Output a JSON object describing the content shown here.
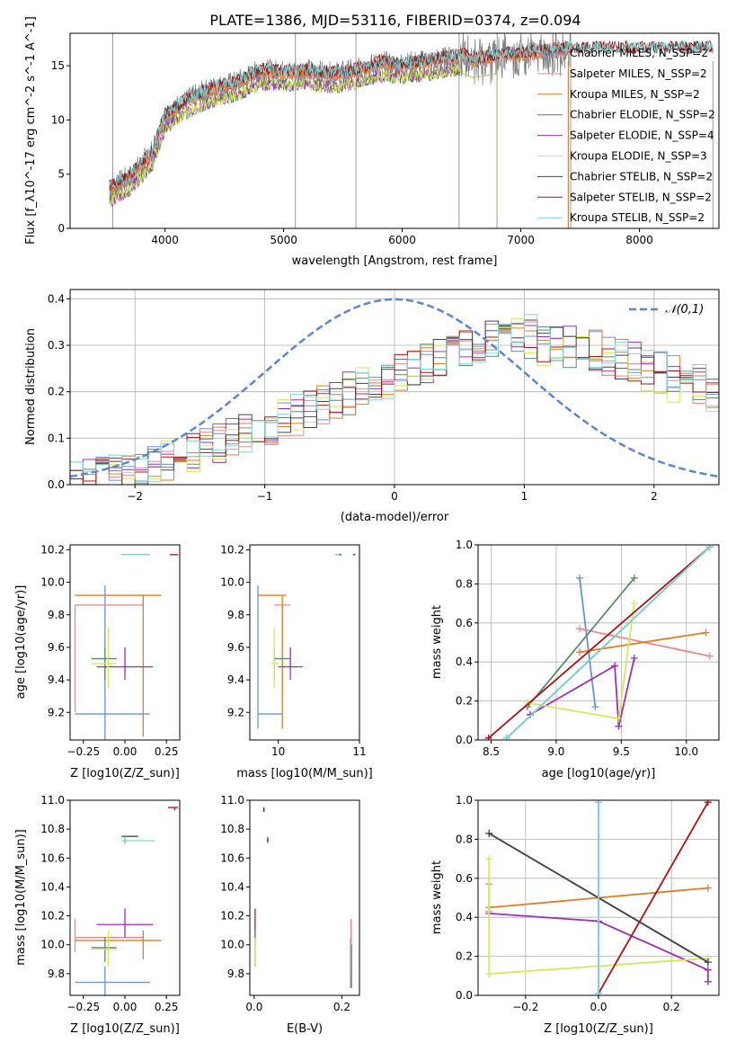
{
  "title": "PLATE=1386, MJD=53116, FIBERID=0374, z=0.094",
  "legend_fit": [
    "Chabrier MILES, N_SSP=2",
    "Salpeter MILES, N_SSP=2",
    "Kroupa MILES, N_SSP=2",
    "Chabrier ELODIE, N_SSP=2",
    "Salpeter ELODIE, N_SSP=4",
    "Kroupa ELODIE, N_SSP=3",
    "Chabrier STELIB, N_SSP=2",
    "Salpeter STELIB, N_SSP=2",
    "Kroupa STELIB, N_SSP=2"
  ],
  "colors": {
    "data": "#808080",
    "fits": [
      "#6a8fdb",
      "#e98a8a",
      "#e07d22",
      "#4c8a4c",
      "#9d2fb5",
      "#d4e85a",
      "#444444",
      "#b01010",
      "#7fd6d6"
    ],
    "series9": [
      "#6a8fdb",
      "#e98a8a",
      "#e07d22",
      "#5a8a6a",
      "#9d2fb5",
      "#d4e85a",
      "#444444",
      "#b01010",
      "#7fd6d6"
    ]
  },
  "chart_data": [
    {
      "type": "line",
      "id": "spectrum",
      "xlabel": "wavelength [Angstrom, rest frame]",
      "ylabel": "Flux [f_λ10^-17 erg cm^-2 s^-1 A^-1]",
      "xlim": [
        3200,
        8670
      ],
      "ylim": [
        0,
        18
      ],
      "xticks": [
        4000,
        5000,
        6000,
        7000,
        8000
      ],
      "yticks": [
        0,
        5,
        10,
        15
      ],
      "continuum_anchors": {
        "x": [
          3530,
          3700,
          3900,
          4000,
          4200,
          4400,
          4600,
          4800,
          5000,
          5200,
          5400,
          5600,
          5800,
          6000,
          6300,
          6500,
          6600,
          6800,
          7000,
          7400
        ],
        "y": [
          3.6,
          4.6,
          7.0,
          10.3,
          11.8,
          12.8,
          13.3,
          14.4,
          14.3,
          14.4,
          14.1,
          14.4,
          15.1,
          15.0,
          15.4,
          15.8,
          15.4,
          15.8,
          16.0,
          16.4
        ]
      },
      "fit_coverage_end": {
        "MILES": 7400,
        "ELODIE": 6800,
        "STELIB": 8620
      }
    },
    {
      "type": "histogram",
      "id": "residuals",
      "xlabel": "(data-model)/error",
      "ylabel": "Normed distribution",
      "xlim": [
        -2.5,
        2.5
      ],
      "ylim": [
        0,
        0.42
      ],
      "xticks": [
        -2,
        -1,
        0,
        1,
        2
      ],
      "yticks": [
        0,
        0.1,
        0.2,
        0.3,
        0.4
      ],
      "gaussian_label": "𝒩(0,1)",
      "bin_width": 0.1,
      "series": [
        {
          "values": [
            0.01,
            0.015,
            0.02,
            0.02,
            0.025,
            0.03,
            0.04,
            0.05,
            0.06,
            0.07,
            0.08,
            0.09,
            0.1,
            0.11,
            0.12,
            0.13,
            0.14,
            0.15,
            0.16,
            0.17,
            0.18,
            0.2,
            0.21,
            0.22,
            0.23,
            0.24,
            0.25,
            0.26,
            0.27,
            0.28,
            0.29,
            0.3,
            0.31,
            0.32,
            0.33,
            0.33,
            0.32,
            0.31,
            0.3,
            0.3,
            0.29,
            0.28,
            0.28,
            0.27,
            0.26,
            0.25,
            0.24,
            0.23,
            0.22,
            0.21
          ]
        },
        {
          "values": [
            0.01,
            0.01,
            0.02,
            0.02,
            0.03,
            0.03,
            0.04,
            0.05,
            0.06,
            0.07,
            0.08,
            0.09,
            0.1,
            0.11,
            0.12,
            0.13,
            0.14,
            0.15,
            0.16,
            0.17,
            0.18,
            0.19,
            0.21,
            0.22,
            0.23,
            0.24,
            0.25,
            0.26,
            0.27,
            0.28,
            0.29,
            0.3,
            0.31,
            0.32,
            0.32,
            0.31,
            0.3,
            0.3,
            0.29,
            0.28,
            0.27,
            0.27,
            0.26,
            0.25,
            0.24,
            0.23,
            0.22,
            0.22,
            0.21,
            0.2
          ]
        }
      ]
    },
    {
      "type": "scatter",
      "id": "age_vs_Z",
      "xlabel": "Z [log10(Z/Z_sun)]",
      "ylabel": "age [log10(age/yr)]",
      "xlim": [
        -0.33,
        0.33
      ],
      "ylim": [
        9.03,
        10.23
      ],
      "xticks": [
        -0.25,
        0.0,
        0.25
      ],
      "yticks": [
        9.2,
        9.4,
        9.6,
        9.8,
        10.0,
        10.2
      ]
    },
    {
      "type": "scatter",
      "id": "age_vs_mass",
      "xlabel": "mass [log10(M/M_sun)]",
      "ylabel": "",
      "xlim": [
        9.65,
        11.0
      ],
      "ylim": [
        9.03,
        10.23
      ],
      "xticks": [
        10,
        11
      ],
      "yticks": [
        9.2,
        9.4,
        9.6,
        9.8,
        10.0,
        10.2
      ]
    },
    {
      "type": "line",
      "id": "weight_vs_age",
      "xlabel": "age [log10(age/yr)]",
      "ylabel": "mass weight",
      "xlim": [
        8.4,
        10.25
      ],
      "ylim": [
        0,
        1
      ],
      "xticks": [
        8.5,
        9.0,
        9.5,
        10.0
      ],
      "yticks": [
        0.0,
        0.2,
        0.4,
        0.6,
        0.8,
        1.0
      ],
      "series": [
        {
          "x": [
            9.18,
            9.3
          ],
          "y": [
            0.83,
            0.17
          ]
        },
        {
          "x": [
            9.18,
            10.18
          ],
          "y": [
            0.57,
            0.43
          ]
        },
        {
          "x": [
            9.18,
            10.15
          ],
          "y": [
            0.45,
            0.55
          ]
        },
        {
          "x": [
            8.78,
            9.6
          ],
          "y": [
            0.17,
            0.83
          ]
        },
        {
          "x": [
            8.8,
            9.45,
            9.48,
            9.6
          ],
          "y": [
            0.13,
            0.38,
            0.07,
            0.42
          ]
        },
        {
          "x": [
            8.78,
            9.48,
            9.6
          ],
          "y": [
            0.19,
            0.11,
            0.7
          ]
        },
        {
          "x": [
            8.62,
            10.18
          ],
          "y": [
            0.01,
            0.99
          ]
        },
        {
          "x": [
            8.48,
            10.18
          ],
          "y": [
            0.01,
            0.99
          ]
        },
        {
          "x": [
            8.62,
            10.18
          ],
          "y": [
            0.01,
            0.99
          ]
        }
      ]
    },
    {
      "type": "scatter",
      "id": "mass_vs_Z",
      "xlabel": "Z [log10(Z/Z_sun)]",
      "ylabel": "mass [log10(M/M_sun)]",
      "xlim": [
        -0.33,
        0.33
      ],
      "ylim": [
        9.65,
        11.0
      ],
      "xticks": [
        -0.25,
        0.0,
        0.25
      ],
      "yticks": [
        9.8,
        10.0,
        10.2,
        10.4,
        10.6,
        10.8,
        11.0
      ]
    },
    {
      "type": "scatter",
      "id": "mass_vs_ebv",
      "xlabel": "E(B-V)",
      "ylabel": "",
      "xlim": [
        -0.01,
        0.24
      ],
      "ylim": [
        9.65,
        11.0
      ],
      "xticks": [
        0.0,
        0.2
      ],
      "yticks": [
        9.8,
        10.0,
        10.2,
        10.4,
        10.6,
        10.8,
        11.0
      ]
    },
    {
      "type": "line",
      "id": "weight_vs_Z",
      "xlabel": "Z [log10(Z/Z_sun)]",
      "ylabel": "mass weight",
      "xlim": [
        -0.33,
        0.33
      ],
      "ylim": [
        0,
        1
      ],
      "xticks": [
        -0.2,
        0.0,
        0.2
      ],
      "yticks": [
        0.0,
        0.2,
        0.4,
        0.6,
        0.8,
        1.0
      ],
      "series": [
        {
          "x": [
            0.0,
            0.0
          ],
          "y": [
            0.99,
            0.01
          ]
        },
        {
          "x": [
            -0.3,
            -0.3
          ],
          "y": [
            0.57,
            0.43
          ]
        },
        {
          "x": [
            -0.3,
            0.3
          ],
          "y": [
            0.45,
            0.55
          ]
        },
        {
          "x": [
            -0.3,
            0.3
          ],
          "y": [
            0.83,
            0.17
          ]
        },
        {
          "x": [
            -0.3,
            0.0,
            0.3,
            0.3
          ],
          "y": [
            0.42,
            0.38,
            0.13,
            0.07
          ]
        },
        {
          "x": [
            -0.3,
            -0.3,
            0.3
          ],
          "y": [
            0.7,
            0.11,
            0.19
          ]
        },
        {
          "x": [
            -0.3,
            0.3
          ],
          "y": [
            0.83,
            0.17
          ]
        },
        {
          "x": [
            0.0,
            0.3
          ],
          "y": [
            0.01,
            0.99
          ]
        },
        {
          "x": [
            0.0,
            0.0
          ],
          "y": [
            0.01,
            0.99
          ]
        }
      ]
    }
  ]
}
